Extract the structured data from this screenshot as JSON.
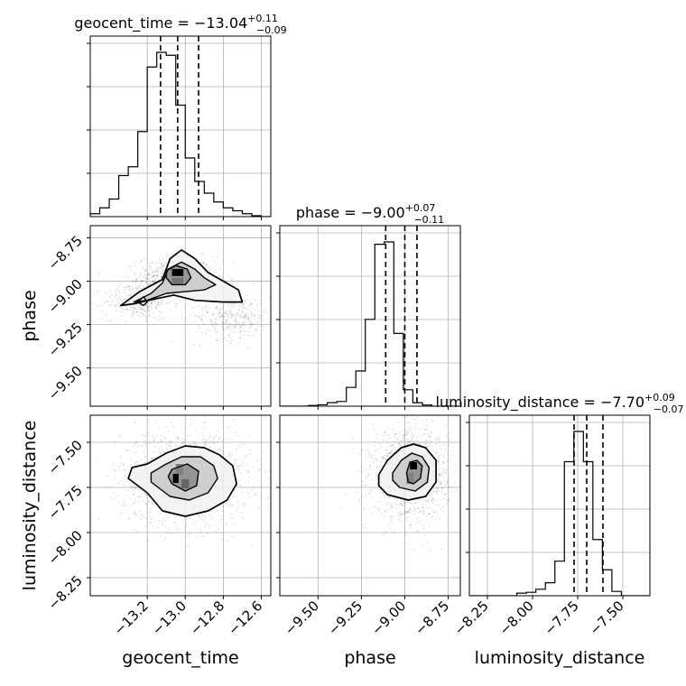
{
  "chart_data": {
    "type": "corner",
    "grid": true,
    "parameters": [
      {
        "name": "geocent_time",
        "label": "geocent_time",
        "median": -13.04,
        "upper_err": 0.11,
        "lower_err": 0.09,
        "title_main": "geocent_time = −13.04",
        "title_sup": "+0.11",
        "title_sub": "−0.09",
        "range": [
          -13.5,
          -12.55
        ],
        "ticks": [
          -13.2,
          -13.0,
          -12.8,
          -12.6
        ],
        "tick_labels": [
          "−13.2",
          "−13.0",
          "−12.8",
          "−12.6"
        ],
        "quantiles": [
          -13.13,
          -13.04,
          -12.93
        ]
      },
      {
        "name": "phase",
        "label": "phase",
        "median": -9.0,
        "upper_err": 0.07,
        "lower_err": 0.11,
        "title_main": "phase = −9.00",
        "title_sup": "+0.07",
        "title_sub": "−0.11",
        "range": [
          -9.72,
          -8.68
        ],
        "ticks": [
          -9.5,
          -9.25,
          -9.0,
          -8.75
        ],
        "tick_labels": [
          "−9.50",
          "−9.25",
          "−9.00",
          "−8.75"
        ],
        "quantiles": [
          -9.11,
          -9.0,
          -8.93
        ]
      },
      {
        "name": "luminosity_distance",
        "label": "luminosity_distance",
        "median": -7.7,
        "upper_err": 0.09,
        "lower_err": 0.07,
        "title_main": "luminosity_distance = −7.70",
        "title_sup": "+0.09",
        "title_sub": "−0.07",
        "range": [
          -8.35,
          -7.35
        ],
        "ticks": [
          -8.25,
          -8.0,
          -7.75,
          -7.5
        ],
        "tick_labels": [
          "−8.25",
          "−8.00",
          "−7.75",
          "−7.50"
        ],
        "quantiles": [
          -7.77,
          -7.7,
          -7.61
        ]
      }
    ],
    "histograms": [
      [
        1,
        3,
        6,
        14,
        17,
        29,
        51,
        56,
        55,
        38,
        20,
        12,
        8,
        5,
        3,
        2,
        1,
        0.3,
        0
      ],
      [
        0,
        0,
        0,
        0.3,
        0.6,
        1.5,
        2,
        8,
        15,
        37,
        69,
        70,
        31,
        7,
        1.5,
        0.5,
        0,
        0,
        0
      ],
      [
        0,
        0,
        0,
        0,
        0,
        0.6,
        0.8,
        1.5,
        3,
        8,
        31,
        38,
        31,
        13,
        6,
        1,
        0,
        0,
        0
      ]
    ],
    "scatter_clouds": {
      "phase_vs_geocent_time": [
        {
          "cx": -13.05,
          "cy": -8.98,
          "sx": 0.1,
          "sy": 0.06,
          "n": 700
        },
        {
          "cx": -13.25,
          "cy": -9.12,
          "sx": 0.09,
          "sy": 0.05,
          "n": 300
        },
        {
          "cx": -12.75,
          "cy": -9.2,
          "sx": 0.1,
          "sy": 0.07,
          "n": 350
        }
      ],
      "luminosity_distance_vs_geocent_time": [
        {
          "cx": -13.0,
          "cy": -7.7,
          "sx": 0.17,
          "sy": 0.13,
          "n": 1300
        }
      ],
      "luminosity_distance_vs_phase": [
        {
          "cx": -8.97,
          "cy": -7.68,
          "sx": 0.11,
          "sy": 0.12,
          "n": 1300
        }
      ]
    },
    "pixel_cells": {
      "phase_vs_geocent_time": [
        {
          "x": -13.04,
          "y": -8.95,
          "w": 0.06,
          "h": 0.04,
          "level": 1.0
        },
        {
          "x": -13.04,
          "y": -9.0,
          "w": 0.06,
          "h": 0.04,
          "level": 0.55
        }
      ],
      "luminosity_distance_vs_geocent_time": [
        {
          "x": -13.03,
          "y": -7.65,
          "w": 0.04,
          "h": 0.06,
          "level": 0.5
        },
        {
          "x": -13.05,
          "y": -7.7,
          "w": 0.03,
          "h": 0.05,
          "level": 1.0
        },
        {
          "x": -13.0,
          "y": -7.73,
          "w": 0.04,
          "h": 0.05,
          "level": 0.6
        }
      ],
      "luminosity_distance_vs_phase": [
        {
          "x": -8.95,
          "y": -7.63,
          "w": 0.04,
          "h": 0.04,
          "level": 1.0
        },
        {
          "x": -8.97,
          "y": -7.7,
          "w": 0.04,
          "h": 0.06,
          "level": 0.5
        }
      ]
    },
    "contours": {
      "phase_vs_geocent_time": [
        [
          [
            -13.34,
            -9.14
          ],
          [
            -13.24,
            -9.06
          ],
          [
            -13.12,
            -8.99
          ],
          [
            -13.08,
            -8.87
          ],
          [
            -13.02,
            -8.82
          ],
          [
            -12.95,
            -8.87
          ],
          [
            -12.88,
            -8.95
          ],
          [
            -12.8,
            -9.0
          ],
          [
            -12.72,
            -9.05
          ],
          [
            -12.7,
            -9.12
          ],
          [
            -12.8,
            -9.12
          ],
          [
            -12.95,
            -9.11
          ],
          [
            -13.06,
            -9.08
          ],
          [
            -13.15,
            -9.1
          ],
          [
            -13.27,
            -9.13
          ]
        ],
        [
          [
            -13.27,
            -9.12
          ],
          [
            -13.18,
            -9.07
          ],
          [
            -13.12,
            -9.01
          ],
          [
            -13.09,
            -8.93
          ],
          [
            -13.02,
            -8.89
          ],
          [
            -12.95,
            -8.93
          ],
          [
            -12.9,
            -8.98
          ],
          [
            -12.84,
            -9.02
          ],
          [
            -12.9,
            -9.05
          ],
          [
            -13.0,
            -9.06
          ],
          [
            -13.1,
            -9.07
          ],
          [
            -13.2,
            -9.11
          ]
        ],
        [
          [
            -13.1,
            -8.94
          ],
          [
            -13.05,
            -8.91
          ],
          [
            -12.99,
            -8.93
          ],
          [
            -12.97,
            -8.98
          ],
          [
            -13.0,
            -9.02
          ],
          [
            -13.07,
            -9.02
          ],
          [
            -13.1,
            -8.98
          ]
        ],
        [
          [
            -13.25,
            -9.12
          ],
          [
            -13.22,
            -9.09
          ],
          [
            -13.2,
            -9.12
          ],
          [
            -13.22,
            -9.14
          ]
        ]
      ],
      "luminosity_distance_vs_geocent_time": [
        [
          [
            -13.28,
            -7.64
          ],
          [
            -13.2,
            -7.62
          ],
          [
            -13.1,
            -7.56
          ],
          [
            -13.0,
            -7.52
          ],
          [
            -12.9,
            -7.53
          ],
          [
            -12.82,
            -7.57
          ],
          [
            -12.75,
            -7.63
          ],
          [
            -12.73,
            -7.73
          ],
          [
            -12.78,
            -7.82
          ],
          [
            -12.88,
            -7.88
          ],
          [
            -13.0,
            -7.91
          ],
          [
            -13.12,
            -7.88
          ],
          [
            -13.2,
            -7.78
          ],
          [
            -13.3,
            -7.7
          ]
        ],
        [
          [
            -13.18,
            -7.67
          ],
          [
            -13.1,
            -7.62
          ],
          [
            -13.02,
            -7.58
          ],
          [
            -12.92,
            -7.58
          ],
          [
            -12.85,
            -7.63
          ],
          [
            -12.83,
            -7.7
          ],
          [
            -12.88,
            -7.78
          ],
          [
            -12.98,
            -7.82
          ],
          [
            -13.08,
            -7.8
          ],
          [
            -13.18,
            -7.72
          ]
        ],
        [
          [
            -13.07,
            -7.65
          ],
          [
            -12.99,
            -7.62
          ],
          [
            -12.93,
            -7.66
          ],
          [
            -12.94,
            -7.74
          ],
          [
            -13.0,
            -7.77
          ],
          [
            -13.07,
            -7.73
          ],
          [
            -13.09,
            -7.69
          ]
        ]
      ],
      "luminosity_distance_vs_phase": [
        [
          [
            -9.15,
            -7.68
          ],
          [
            -9.1,
            -7.6
          ],
          [
            -9.02,
            -7.53
          ],
          [
            -8.95,
            -7.51
          ],
          [
            -8.88,
            -7.53
          ],
          [
            -8.82,
            -7.6
          ],
          [
            -8.82,
            -7.72
          ],
          [
            -8.88,
            -7.8
          ],
          [
            -8.98,
            -7.82
          ],
          [
            -9.1,
            -7.79
          ],
          [
            -9.15,
            -7.74
          ]
        ],
        [
          [
            -9.07,
            -7.67
          ],
          [
            -9.02,
            -7.6
          ],
          [
            -8.96,
            -7.56
          ],
          [
            -8.9,
            -7.58
          ],
          [
            -8.86,
            -7.64
          ],
          [
            -8.87,
            -7.72
          ],
          [
            -8.94,
            -7.77
          ],
          [
            -9.03,
            -7.75
          ],
          [
            -9.07,
            -7.71
          ]
        ],
        [
          [
            -8.99,
            -7.67
          ],
          [
            -8.97,
            -7.61
          ],
          [
            -8.93,
            -7.6
          ],
          [
            -8.9,
            -7.63
          ],
          [
            -8.91,
            -7.7
          ],
          [
            -8.95,
            -7.73
          ],
          [
            -8.98,
            -7.72
          ]
        ]
      ]
    }
  }
}
